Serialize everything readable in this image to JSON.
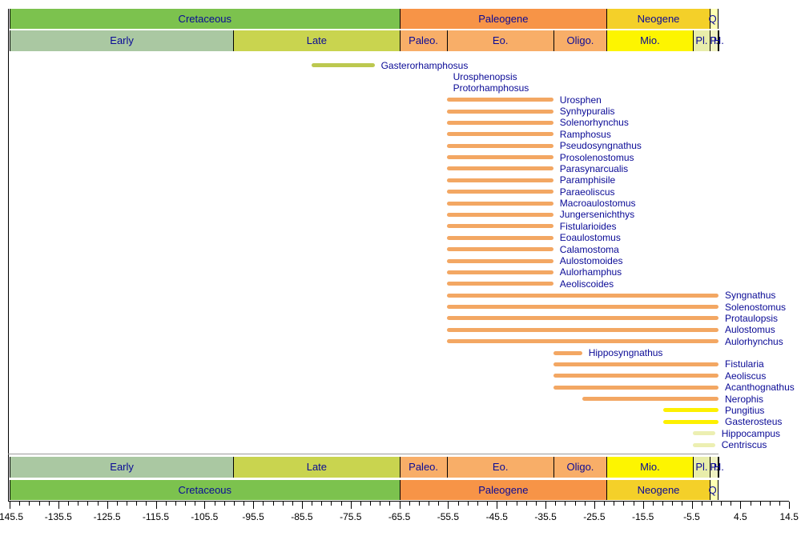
{
  "palette": {
    "label_navy": "#0A0A96",
    "axis_black": "#000000",
    "background": "#FFFFFF",
    "bar_colors": {
      "olive": "#BCC84F",
      "orange": "#F3A763",
      "yellow": "#FDF000",
      "pale": "#ECEFB2"
    }
  },
  "timescale": {
    "periods": [
      {
        "name": "Cretaceous",
        "start": -145.5,
        "end": -65.5,
        "color": "#7CC24E"
      },
      {
        "name": "Paleogene",
        "start": -65.5,
        "end": -23.0,
        "color": "#F79447"
      },
      {
        "name": "Neogene",
        "start": -23.0,
        "end": -1.8,
        "color": "#F4D029"
      },
      {
        "name": "Q.",
        "start": -1.8,
        "end": 0,
        "color": "#FFFFB3"
      }
    ],
    "epochs": [
      {
        "name": "Early",
        "start": -145.5,
        "end": -99.6,
        "color": "#AAC8A2"
      },
      {
        "name": "Late",
        "start": -99.6,
        "end": -65.5,
        "color": "#C9D44F"
      },
      {
        "name": "Paleo.",
        "start": -65.5,
        "end": -55.8,
        "color": "#F8AE68"
      },
      {
        "name": "Eo.",
        "start": -55.8,
        "end": -33.9,
        "color": "#F8AE68"
      },
      {
        "name": "Oligo.",
        "start": -33.9,
        "end": -23.0,
        "color": "#F8AE68"
      },
      {
        "name": "Mio.",
        "start": -23.0,
        "end": -5.3,
        "color": "#FDF500"
      },
      {
        "name": "Pl.",
        "start": -5.3,
        "end": -1.8,
        "color": "#E8EDAA"
      },
      {
        "name": "P.",
        "start": -1.8,
        "end": -0.1,
        "color": "#EFF1C1"
      },
      {
        "name": "H.",
        "start": -0.1,
        "end": 0,
        "color": "#F3F4D1"
      }
    ]
  },
  "chart_data": {
    "type": "bar",
    "orientation": "horizontal-range",
    "unit": "Ma",
    "xlim": [
      -145.5,
      14.5
    ],
    "x_major_step": 10,
    "x_minor_step": 2,
    "x_major_tick_labels": [
      "-145.5",
      "-135.5",
      "-125.5",
      "-115.5",
      "-105.5",
      "-95.5",
      "-85.5",
      "-75.5",
      "-65.5",
      "-55.5",
      "-45.5",
      "-35.5",
      "-25.5",
      "-15.5",
      "-5.5",
      "4.5",
      "14.5"
    ],
    "taxa": [
      {
        "name": "Gasterorhamphosus",
        "start": -83.5,
        "end": -70.6,
        "color_key": "olive"
      },
      {
        "name": "Urosphenopsis",
        "start": -55.8,
        "end": -55.8,
        "color_key": "orange"
      },
      {
        "name": "Protorhamphosus",
        "start": -55.8,
        "end": -55.8,
        "color_key": "orange"
      },
      {
        "name": "Urosphen",
        "start": -55.8,
        "end": -33.9,
        "color_key": "orange"
      },
      {
        "name": "Synhypuralis",
        "start": -55.8,
        "end": -33.9,
        "color_key": "orange"
      },
      {
        "name": "Solenorhynchus",
        "start": -55.8,
        "end": -33.9,
        "color_key": "orange"
      },
      {
        "name": "Ramphosus",
        "start": -55.8,
        "end": -33.9,
        "color_key": "orange"
      },
      {
        "name": "Pseudosyngnathus",
        "start": -55.8,
        "end": -33.9,
        "color_key": "orange"
      },
      {
        "name": "Prosolenostomus",
        "start": -55.8,
        "end": -33.9,
        "color_key": "orange"
      },
      {
        "name": "Parasynarcualis",
        "start": -55.8,
        "end": -33.9,
        "color_key": "orange"
      },
      {
        "name": "Paramphisile",
        "start": -55.8,
        "end": -33.9,
        "color_key": "orange"
      },
      {
        "name": "Paraeoliscus",
        "start": -55.8,
        "end": -33.9,
        "color_key": "orange"
      },
      {
        "name": "Macroaulostomus",
        "start": -55.8,
        "end": -33.9,
        "color_key": "orange"
      },
      {
        "name": "Jungersenichthys",
        "start": -55.8,
        "end": -33.9,
        "color_key": "orange"
      },
      {
        "name": "Fistularioides",
        "start": -55.8,
        "end": -33.9,
        "color_key": "orange"
      },
      {
        "name": "Eoaulostomus",
        "start": -55.8,
        "end": -33.9,
        "color_key": "orange"
      },
      {
        "name": "Calamostoma",
        "start": -55.8,
        "end": -33.9,
        "color_key": "orange"
      },
      {
        "name": "Aulostomoides",
        "start": -55.8,
        "end": -33.9,
        "color_key": "orange"
      },
      {
        "name": "Aulorhamphus",
        "start": -55.8,
        "end": -33.9,
        "color_key": "orange"
      },
      {
        "name": "Aeoliscoides",
        "start": -55.8,
        "end": -33.9,
        "color_key": "orange"
      },
      {
        "name": "Syngnathus",
        "start": -55.8,
        "end": 0,
        "color_key": "orange"
      },
      {
        "name": "Solenostomus",
        "start": -55.8,
        "end": 0,
        "color_key": "orange"
      },
      {
        "name": "Protaulopsis",
        "start": -55.8,
        "end": 0,
        "color_key": "orange"
      },
      {
        "name": "Aulostomus",
        "start": -55.8,
        "end": 0,
        "color_key": "orange"
      },
      {
        "name": "Aulorhynchus",
        "start": -55.8,
        "end": 0,
        "color_key": "orange"
      },
      {
        "name": "Hipposyngnathus",
        "start": -33.9,
        "end": -28.0,
        "color_key": "orange"
      },
      {
        "name": "Fistularia",
        "start": -33.9,
        "end": 0,
        "color_key": "orange"
      },
      {
        "name": "Aeoliscus",
        "start": -33.9,
        "end": 0,
        "color_key": "orange"
      },
      {
        "name": "Acanthognathus",
        "start": -33.9,
        "end": 0,
        "color_key": "orange"
      },
      {
        "name": "Nerophis",
        "start": -28.0,
        "end": 0,
        "color_key": "orange"
      },
      {
        "name": "Pungitius",
        "start": -11.3,
        "end": 0,
        "color_key": "yellow"
      },
      {
        "name": "Gasterosteus",
        "start": -11.3,
        "end": 0,
        "color_key": "yellow"
      },
      {
        "name": "Hippocampus",
        "start": -5.3,
        "end": -0.7,
        "color_key": "pale"
      },
      {
        "name": "Centriscus",
        "start": -5.3,
        "end": -0.7,
        "color_key": "pale"
      }
    ]
  }
}
